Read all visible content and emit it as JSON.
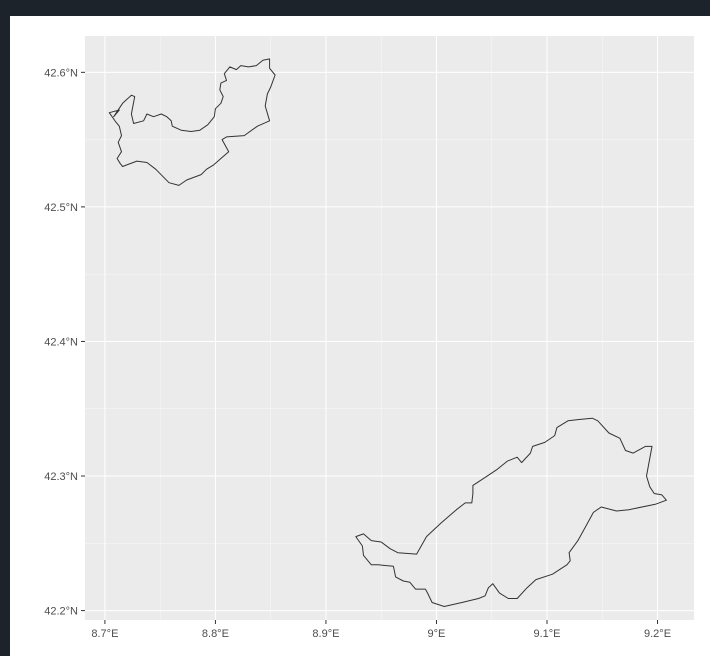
{
  "map": {
    "background_color": "#ebebeb",
    "grid_major_color": "#ffffff",
    "outline_color": "#333333",
    "x_ticks": [
      {
        "value": 8.7,
        "label": "8.7°E"
      },
      {
        "value": 8.8,
        "label": "8.8°E"
      },
      {
        "value": 8.9,
        "label": "8.9°E"
      },
      {
        "value": 9.0,
        "label": "9°E"
      },
      {
        "value": 9.1,
        "label": "9.1°E"
      },
      {
        "value": 9.2,
        "label": "9.2°E"
      }
    ],
    "y_ticks": [
      {
        "value": 42.2,
        "label": "42.2°N"
      },
      {
        "value": 42.3,
        "label": "42.3°N"
      },
      {
        "value": 42.4,
        "label": "42.4°N"
      },
      {
        "value": 42.5,
        "label": "42.5°N"
      },
      {
        "value": 42.6,
        "label": "42.6°N"
      }
    ],
    "x_range": [
      8.682,
      9.233
    ],
    "y_range": [
      42.193,
      42.627
    ],
    "shapes": [
      {
        "coords": [
          [
            8.704,
            42.57
          ],
          [
            8.713,
            42.572
          ],
          [
            8.708,
            42.567
          ],
          [
            8.716,
            42.577
          ],
          [
            8.724,
            42.583
          ],
          [
            8.727,
            42.582
          ],
          [
            8.724,
            42.569
          ],
          [
            8.726,
            42.562
          ],
          [
            8.735,
            42.564
          ],
          [
            8.738,
            42.569
          ],
          [
            8.744,
            42.567
          ],
          [
            8.751,
            42.569
          ],
          [
            8.756,
            42.567
          ],
          [
            8.76,
            42.564
          ],
          [
            8.761,
            42.56
          ],
          [
            8.769,
            42.557
          ],
          [
            8.778,
            42.556
          ],
          [
            8.786,
            42.557
          ],
          [
            8.793,
            42.561
          ],
          [
            8.799,
            42.567
          ],
          [
            8.8,
            42.573
          ],
          [
            8.805,
            42.577
          ],
          [
            8.807,
            42.582
          ],
          [
            8.804,
            42.587
          ],
          [
            8.805,
            42.592
          ],
          [
            8.81,
            42.594
          ],
          [
            8.808,
            42.599
          ],
          [
            8.813,
            42.604
          ],
          [
            8.819,
            42.602
          ],
          [
            8.823,
            42.605
          ],
          [
            8.83,
            42.604
          ],
          [
            8.837,
            42.605
          ],
          [
            8.843,
            42.609
          ],
          [
            8.849,
            42.61
          ],
          [
            8.849,
            42.603
          ],
          [
            8.854,
            42.598
          ],
          [
            8.85,
            42.589
          ],
          [
            8.847,
            42.584
          ],
          [
            8.845,
            42.575
          ],
          [
            8.849,
            42.564
          ],
          [
            8.838,
            42.56
          ],
          [
            8.826,
            42.553
          ],
          [
            8.81,
            42.552
          ],
          [
            8.806,
            42.55
          ],
          [
            8.812,
            42.541
          ],
          [
            8.805,
            42.536
          ],
          [
            8.798,
            42.531
          ],
          [
            8.792,
            42.528
          ],
          [
            8.787,
            42.524
          ],
          [
            8.774,
            42.52
          ],
          [
            8.767,
            42.516
          ],
          [
            8.758,
            42.518
          ],
          [
            8.746,
            42.528
          ],
          [
            8.738,
            42.533
          ],
          [
            8.729,
            42.534
          ],
          [
            8.716,
            42.53
          ],
          [
            8.714,
            42.532
          ],
          [
            8.711,
            42.536
          ],
          [
            8.715,
            42.541
          ],
          [
            8.712,
            42.548
          ],
          [
            8.715,
            42.553
          ],
          [
            8.713,
            42.56
          ],
          [
            8.71,
            42.563
          ],
          [
            8.704,
            42.57
          ]
        ]
      },
      {
        "coords": [
          [
            8.927,
            42.255
          ],
          [
            8.934,
            42.257
          ],
          [
            8.941,
            42.252
          ],
          [
            8.95,
            42.251
          ],
          [
            8.958,
            42.246
          ],
          [
            8.965,
            42.243
          ],
          [
            8.982,
            42.242
          ],
          [
            8.991,
            42.255
          ],
          [
            9.004,
            42.265
          ],
          [
            9.018,
            42.275
          ],
          [
            9.026,
            42.28
          ],
          [
            9.032,
            42.28
          ],
          [
            9.033,
            42.287
          ],
          [
            9.033,
            42.293
          ],
          [
            9.044,
            42.299
          ],
          [
            9.055,
            42.305
          ],
          [
            9.064,
            42.311
          ],
          [
            9.073,
            42.314
          ],
          [
            9.077,
            42.31
          ],
          [
            9.085,
            42.317
          ],
          [
            9.087,
            42.322
          ],
          [
            9.098,
            42.325
          ],
          [
            9.107,
            42.33
          ],
          [
            9.109,
            42.336
          ],
          [
            9.119,
            42.341
          ],
          [
            9.129,
            42.342
          ],
          [
            9.141,
            42.343
          ],
          [
            9.146,
            42.341
          ],
          [
            9.156,
            42.332
          ],
          [
            9.166,
            42.328
          ],
          [
            9.171,
            42.319
          ],
          [
            9.178,
            42.317
          ],
          [
            9.189,
            42.322
          ],
          [
            9.195,
            42.322
          ],
          [
            9.19,
            42.3
          ],
          [
            9.193,
            42.292
          ],
          [
            9.197,
            42.287
          ],
          [
            9.204,
            42.286
          ],
          [
            9.208,
            42.282
          ],
          [
            9.198,
            42.279
          ],
          [
            9.174,
            42.275
          ],
          [
            9.163,
            42.274
          ],
          [
            9.149,
            42.277
          ],
          [
            9.142,
            42.273
          ],
          [
            9.136,
            42.264
          ],
          [
            9.128,
            42.252
          ],
          [
            9.12,
            42.243
          ],
          [
            9.121,
            42.237
          ],
          [
            9.118,
            42.234
          ],
          [
            9.105,
            42.227
          ],
          [
            9.09,
            42.223
          ],
          [
            9.082,
            42.217
          ],
          [
            9.073,
            42.209
          ],
          [
            9.065,
            42.209
          ],
          [
            9.057,
            42.213
          ],
          [
            9.051,
            42.22
          ],
          [
            9.047,
            42.217
          ],
          [
            9.044,
            42.211
          ],
          [
            9.038,
            42.209
          ],
          [
            9.023,
            42.206
          ],
          [
            9.007,
            42.203
          ],
          [
            8.996,
            42.206
          ],
          [
            8.992,
            42.213
          ],
          [
            8.99,
            42.216
          ],
          [
            8.981,
            42.216
          ],
          [
            8.976,
            42.221
          ],
          [
            8.97,
            42.222
          ],
          [
            8.963,
            42.225
          ],
          [
            8.961,
            42.233
          ],
          [
            8.947,
            42.234
          ],
          [
            8.941,
            42.234
          ],
          [
            8.936,
            42.239
          ],
          [
            8.934,
            42.241
          ],
          [
            8.933,
            42.248
          ],
          [
            8.927,
            42.255
          ]
        ]
      }
    ]
  }
}
